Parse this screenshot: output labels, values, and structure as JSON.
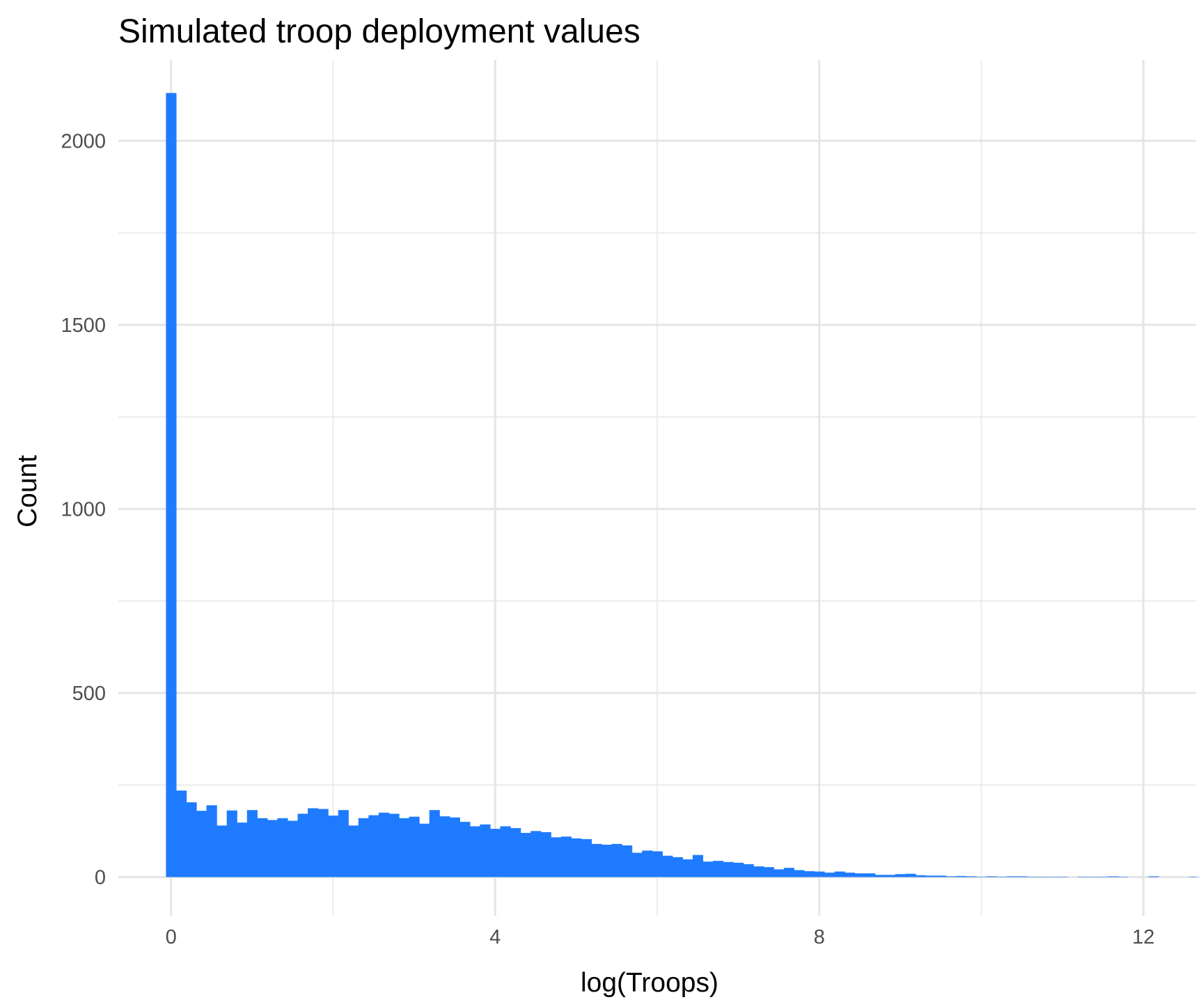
{
  "chart_data": {
    "type": "histogram",
    "title": "Simulated troop deployment values",
    "xlabel": "log(Troops)",
    "ylabel": "Count",
    "xlim": [
      -0.65,
      12.65
    ],
    "ylim": [
      -105,
      2220
    ],
    "x_ticks": [
      0,
      4,
      8,
      12
    ],
    "x_tick_labels": [
      "0",
      "4",
      "8",
      "12"
    ],
    "y_ticks": [
      0,
      500,
      1000,
      1500,
      2000
    ],
    "y_tick_labels": [
      "0",
      "500",
      "1000",
      "1500",
      "2000"
    ],
    "grid": true,
    "legend": "none",
    "bar_color": "#1e7bff",
    "bin_start": -0.0625,
    "bin_width": 0.125,
    "counts": [
      2130,
      235,
      203,
      180,
      195,
      140,
      181,
      148,
      182,
      160,
      155,
      160,
      153,
      172,
      187,
      185,
      167,
      182,
      140,
      160,
      168,
      175,
      172,
      160,
      164,
      145,
      182,
      165,
      162,
      150,
      138,
      143,
      131,
      138,
      133,
      120,
      125,
      122,
      108,
      110,
      105,
      103,
      90,
      88,
      90,
      86,
      66,
      72,
      70,
      58,
      54,
      48,
      60,
      42,
      44,
      41,
      39,
      35,
      29,
      27,
      21,
      25,
      19,
      16,
      15,
      12,
      15,
      12,
      10,
      10,
      6,
      6,
      8,
      9,
      5,
      4,
      4,
      2,
      3,
      2,
      1,
      2,
      1,
      2,
      2,
      1,
      1,
      1,
      1,
      0,
      1,
      1,
      1,
      2,
      1,
      0,
      0,
      2,
      0,
      0,
      0,
      1,
      0,
      1,
      2,
      1
    ]
  }
}
